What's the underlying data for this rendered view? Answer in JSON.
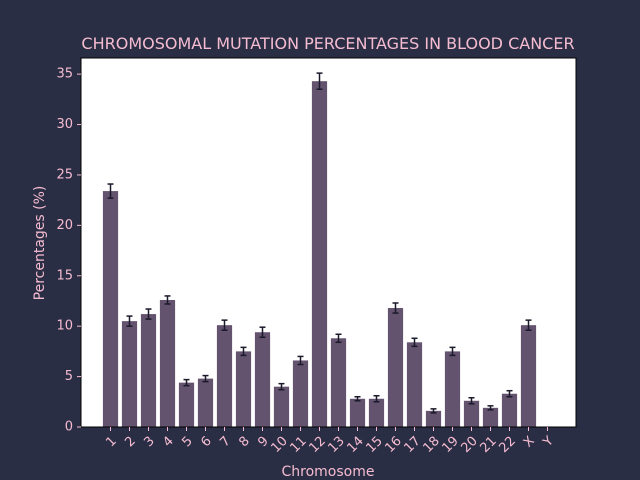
{
  "chart_data": {
    "type": "bar",
    "title": "CHROMOSOMAL MUTATION PERCENTAGES IN BLOOD CANCER",
    "xlabel": "Chromosome",
    "ylabel": "Percentages (%)",
    "categories": [
      "1",
      "2",
      "3",
      "4",
      "5",
      "6",
      "7",
      "8",
      "9",
      "10",
      "11",
      "12",
      "13",
      "14",
      "15",
      "16",
      "17",
      "18",
      "19",
      "20",
      "21",
      "22",
      "X",
      "Y"
    ],
    "values": [
      23.4,
      10.5,
      11.2,
      12.6,
      4.4,
      4.8,
      10.1,
      7.5,
      9.4,
      4.0,
      6.6,
      34.3,
      8.8,
      2.8,
      2.8,
      11.8,
      8.4,
      1.6,
      7.5,
      2.6,
      1.9,
      3.3,
      10.1,
      0.0
    ],
    "errors": [
      0.7,
      0.5,
      0.5,
      0.4,
      0.3,
      0.3,
      0.5,
      0.4,
      0.5,
      0.3,
      0.4,
      0.8,
      0.4,
      0.2,
      0.3,
      0.5,
      0.4,
      0.2,
      0.4,
      0.3,
      0.2,
      0.3,
      0.5,
      0.0
    ],
    "yticks": [
      0,
      5,
      10,
      15,
      20,
      25,
      30,
      35
    ],
    "ylim": [
      0,
      36.6
    ],
    "grid": false,
    "colors": {
      "background": "#2a2e44",
      "plot_background": "#ffffff",
      "bar": "#64536f",
      "error_bar": "#1a1a2a",
      "text": "#f5bcd1"
    }
  }
}
